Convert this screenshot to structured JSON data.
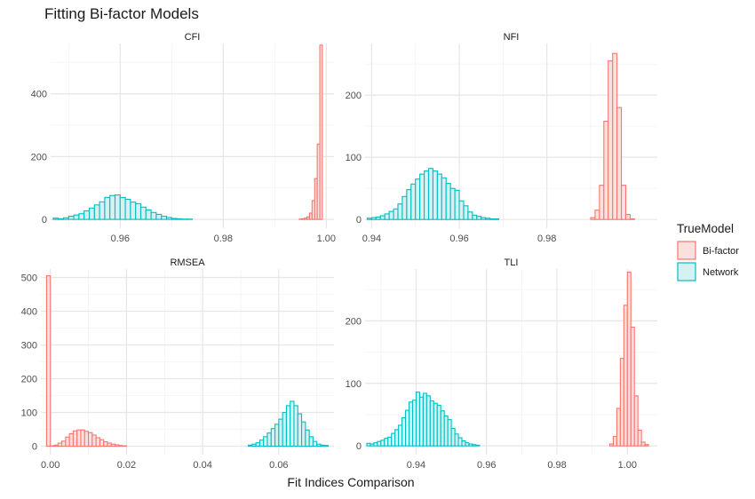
{
  "chart_data": {
    "type": "bar",
    "title": "Fitting Bi-factor Models",
    "xlabel": "Fit Indices Comparison",
    "ylabel": "",
    "grid": true,
    "legend": {
      "title": "TrueModel",
      "position": "right",
      "entries": [
        {
          "name": "Bi-factor",
          "stroke": "#F8766D",
          "fill": "#FBE0DE"
        },
        {
          "name": "Network",
          "stroke": "#00BFC4",
          "fill": "#D6F1F2"
        }
      ]
    },
    "panels": [
      {
        "name": "CFI",
        "xlim": [
          0.9465,
          1.0015
        ],
        "ylim": [
          -28,
          560
        ],
        "xticks": [
          0.96,
          0.98,
          1.0
        ],
        "xtick_labels": [
          "0.96",
          "0.98",
          "1.00"
        ],
        "yticks": [
          0,
          200,
          400
        ],
        "ytick_labels": [
          "0",
          "200",
          "400"
        ],
        "series": [
          {
            "name": "Bi-factor",
            "bins": [
              0.995,
              0.9955,
              0.996,
              0.9965,
              0.997,
              0.9975,
              0.998,
              0.9985,
              0.999,
              0.9995,
              1.0
            ],
            "width": 0.0005,
            "counts": [
              1,
              2,
              4,
              8,
              20,
              60,
              130,
              240,
              555,
              0,
              0
            ]
          },
          {
            "name": "Network",
            "bins": [
              0.9475,
              0.9485,
              0.9495,
              0.9505,
              0.9515,
              0.9525,
              0.9535,
              0.9545,
              0.9555,
              0.9565,
              0.9575,
              0.9585,
              0.9595,
              0.9605,
              0.9615,
              0.9625,
              0.9635,
              0.9645,
              0.9655,
              0.9665,
              0.9675,
              0.9685,
              0.9695,
              0.9705,
              0.9715,
              0.9725,
              0.9735,
              0.9745
            ],
            "width": 0.001,
            "counts": [
              4,
              2,
              5,
              10,
              14,
              18,
              27,
              36,
              46,
              56,
              70,
              76,
              78,
              70,
              64,
              55,
              50,
              39,
              30,
              22,
              16,
              10,
              6,
              3,
              2,
              1,
              1,
              0
            ]
          }
        ]
      },
      {
        "name": "NFI",
        "xlim": [
          0.9385,
          1.0052
        ],
        "ylim": [
          -14,
          283
        ],
        "xticks": [
          0.94,
          0.96,
          0.98
        ],
        "xtick_labels": [
          "0.94",
          "0.96",
          "0.98"
        ],
        "yticks": [
          0,
          100,
          200
        ],
        "ytick_labels": [
          "0",
          "100",
          "200"
        ],
        "series": [
          {
            "name": "Bi-factor",
            "bins": [
              0.9905,
              0.9915,
              0.9925,
              0.9935,
              0.9945,
              0.9955,
              0.9965,
              0.9975,
              0.9985,
              0.9995
            ],
            "width": 0.001,
            "counts": [
              3,
              15,
              55,
              158,
              255,
              267,
              180,
              55,
              8,
              1
            ]
          },
          {
            "name": "Network",
            "bins": [
              0.9395,
              0.9405,
              0.9415,
              0.9425,
              0.9435,
              0.9445,
              0.9455,
              0.9465,
              0.9475,
              0.9485,
              0.9495,
              0.9505,
              0.9515,
              0.9525,
              0.9535,
              0.9545,
              0.9555,
              0.9565,
              0.9575,
              0.9585,
              0.9595,
              0.9605,
              0.9615,
              0.9625,
              0.9635,
              0.9645,
              0.9655,
              0.9665,
              0.9675,
              0.9685,
              0.9695
            ],
            "width": 0.001,
            "counts": [
              2,
              3,
              4,
              6,
              9,
              13,
              17,
              25,
              37,
              48,
              57,
              65,
              73,
              78,
              82,
              78,
              73,
              67,
              58,
              50,
              47,
              30,
              22,
              12,
              7,
              5,
              3,
              2,
              1,
              1,
              0
            ]
          }
        ]
      },
      {
        "name": "RMSEA",
        "xlim": [
          -0.0025,
          0.0745
        ],
        "ylim": [
          -25,
          525
        ],
        "xticks": [
          0.0,
          0.02,
          0.04,
          0.06
        ],
        "xtick_labels": [
          "0.00",
          "0.02",
          "0.04",
          "0.06"
        ],
        "yticks": [
          0,
          100,
          200,
          300,
          400,
          500
        ],
        "ytick_labels": [
          "0",
          "100",
          "200",
          "300",
          "400",
          "500"
        ],
        "series": [
          {
            "name": "Bi-factor",
            "bins": [
              -0.0005,
              0.0005,
              0.0015,
              0.0025,
              0.0035,
              0.0045,
              0.0055,
              0.0065,
              0.0075,
              0.0085,
              0.0095,
              0.0105,
              0.0115,
              0.0125,
              0.0135,
              0.0145,
              0.0155,
              0.0165,
              0.0175,
              0.0185,
              0.0195,
              0.0205
            ],
            "width": 0.001,
            "counts": [
              505,
              1,
              3,
              9,
              15,
              27,
              37,
              45,
              48,
              48,
              44,
              40,
              33,
              25,
              19,
              13,
              9,
              6,
              4,
              2,
              1,
              0
            ]
          },
          {
            "name": "Network",
            "bins": [
              0.0525,
              0.0535,
              0.0545,
              0.0555,
              0.0565,
              0.0575,
              0.0585,
              0.0595,
              0.0605,
              0.0615,
              0.0625,
              0.0635,
              0.0645,
              0.0655,
              0.0665,
              0.0675,
              0.0685,
              0.0695,
              0.0705,
              0.0715,
              0.0725
            ],
            "width": 0.001,
            "counts": [
              3,
              6,
              10,
              18,
              28,
              39,
              52,
              65,
              80,
              100,
              120,
              133,
              120,
              96,
              72,
              48,
              28,
              14,
              6,
              3,
              2
            ]
          }
        ]
      },
      {
        "name": "TLI",
        "xlim": [
          0.9255,
          1.0085
        ],
        "ylim": [
          -14,
          283
        ],
        "xticks": [
          0.94,
          0.96,
          0.98,
          1.0
        ],
        "xtick_labels": [
          "0.94",
          "0.96",
          "0.98",
          "1.00"
        ],
        "yticks": [
          0,
          100,
          200
        ],
        "ytick_labels": [
          "0",
          "100",
          "200"
        ],
        "series": [
          {
            "name": "Bi-factor",
            "bins": [
              0.9955,
              0.9965,
              0.9975,
              0.9985,
              0.9995,
              1.0005,
              1.0015,
              1.0025,
              1.0035,
              1.0045,
              1.0055
            ],
            "width": 0.001,
            "counts": [
              3,
              15,
              60,
              140,
              225,
              278,
              190,
              80,
              25,
              6,
              2
            ]
          },
          {
            "name": "Network",
            "bins": [
              0.9265,
              0.9275,
              0.9285,
              0.9295,
              0.9305,
              0.9315,
              0.9325,
              0.9335,
              0.9345,
              0.9355,
              0.9365,
              0.9375,
              0.9385,
              0.9395,
              0.9405,
              0.9415,
              0.9425,
              0.9435,
              0.9445,
              0.9455,
              0.9465,
              0.9475,
              0.9485,
              0.9495,
              0.9505,
              0.9515,
              0.9525,
              0.9535,
              0.9545,
              0.9555,
              0.9565,
              0.9575
            ],
            "width": 0.001,
            "counts": [
              4,
              3,
              5,
              7,
              9,
              12,
              14,
              20,
              26,
              33,
              45,
              57,
              70,
              73,
              86,
              78,
              84,
              80,
              72,
              68,
              65,
              56,
              48,
              42,
              28,
              19,
              13,
              8,
              5,
              3,
              2,
              1
            ]
          }
        ]
      }
    ]
  }
}
